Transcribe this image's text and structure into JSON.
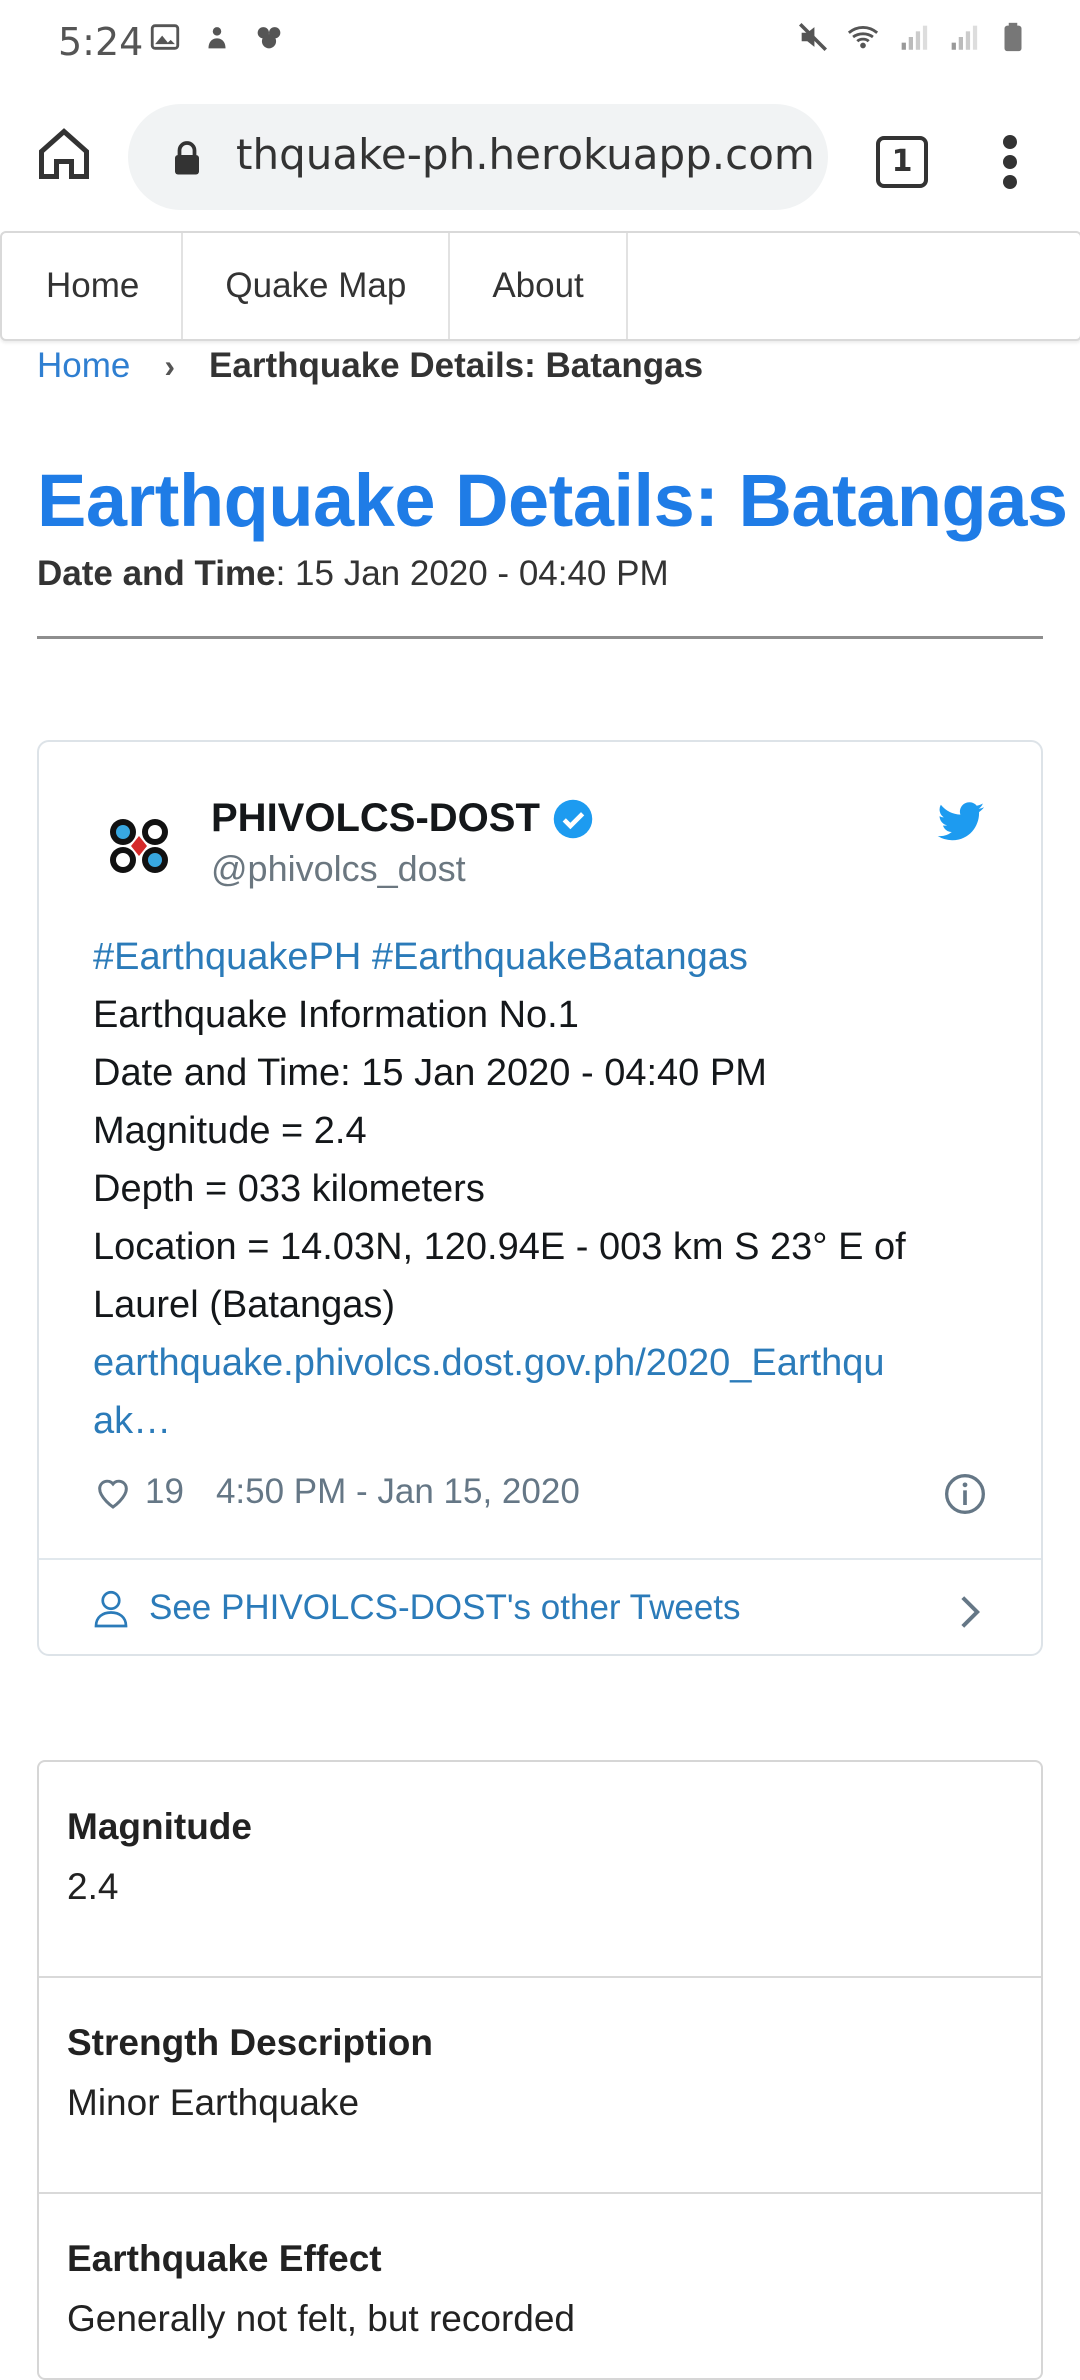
{
  "status_bar": {
    "time": "5:24"
  },
  "browser": {
    "url": "thquake-ph.herokuapp.com",
    "tab_count": "1"
  },
  "nav": {
    "items": [
      "Home",
      "Quake Map",
      "About"
    ]
  },
  "breadcrumb": {
    "home": "Home",
    "separator": "›",
    "current": "Earthquake Details: Batangas"
  },
  "page": {
    "title": "Earthquake Details: Batangas",
    "datetime_label": "Date and Time",
    "datetime_value": ": 15 Jan 2020 - 04:40 PM"
  },
  "tweet": {
    "name": "PHIVOLCS-DOST",
    "handle": "@phivolcs_dost",
    "hashtags": "#EarthquakePH #EarthquakeBatangas",
    "lines": [
      "Earthquake Information No.1",
      "Date and Time: 15 Jan 2020 - 04:40 PM",
      "Magnitude = 2.4",
      "Depth = 033 kilometers",
      "Location = 14.03N, 120.94E - 003 km S 23° E of",
      "Laurel (Batangas)"
    ],
    "link_line1": "earthquake.phivolcs.dost.gov.ph/2020_Earthqu",
    "link_line2": "ak…",
    "likes": "19",
    "timestamp": "4:50 PM - Jan 15, 2020",
    "other_tweets": "See PHIVOLCS-DOST's other Tweets"
  },
  "details": [
    {
      "label": "Magnitude",
      "value": "2.4"
    },
    {
      "label": "Strength Description",
      "value": "Minor Earthquake"
    },
    {
      "label": "Earthquake Effect",
      "value": "Generally not felt, but recorded"
    }
  ],
  "colors": {
    "title": "#1f7ce6",
    "link": "#2b7bb9",
    "verified": "#1d9bf0"
  }
}
